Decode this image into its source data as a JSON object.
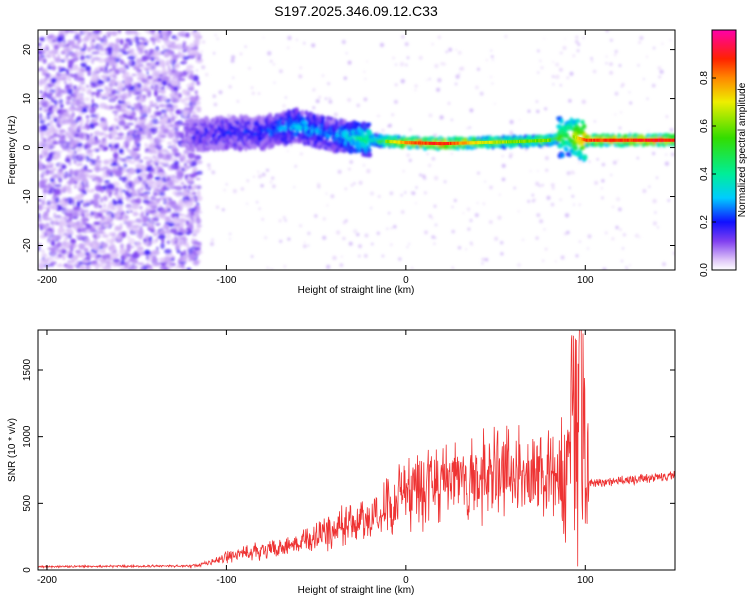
{
  "chart_data": [
    {
      "type": "heatmap",
      "title": "S197.2025.346.09.12.C33",
      "xlabel": "Height of straight line (km)",
      "ylabel": "Frequency (Hz)",
      "xlim": [
        -205,
        150
      ],
      "ylim": [
        -25,
        24
      ],
      "xticks": [
        {
          "value": -200,
          "label": "-200"
        },
        {
          "value": -100,
          "label": "-100"
        },
        {
          "value": 0,
          "label": "0"
        },
        {
          "value": 100,
          "label": "100"
        }
      ],
      "yticks": [
        {
          "value": -20,
          "label": "-20"
        },
        {
          "value": -10,
          "label": "-10"
        },
        {
          "value": 0,
          "label": "0"
        },
        {
          "value": 10,
          "label": "10"
        },
        {
          "value": 20,
          "label": "20"
        }
      ],
      "colorbar": {
        "label": "Normalized spectral amplitude",
        "range": [
          0,
          1
        ],
        "ticks": [
          {
            "value": 0.0,
            "label": "0.0"
          },
          {
            "value": 0.2,
            "label": "0.2"
          },
          {
            "value": 0.4,
            "label": "0.4"
          },
          {
            "value": 0.6,
            "label": "0.6"
          },
          {
            "value": 0.8,
            "label": "0.8"
          }
        ]
      },
      "ridge": {
        "description_points_x": [
          -120,
          -100,
          -80,
          -60,
          -40,
          -20,
          0,
          20,
          40,
          60,
          80,
          90,
          100,
          150
        ],
        "description_points_freq": [
          2.5,
          3.0,
          3.0,
          4.5,
          2.5,
          1.5,
          1.0,
          0.8,
          1.0,
          1.2,
          1.5,
          2.5,
          1.5,
          1.5
        ],
        "description_points_amplitude": [
          0.15,
          0.18,
          0.2,
          0.3,
          0.25,
          0.45,
          0.8,
          0.9,
          0.7,
          0.6,
          0.6,
          0.5,
          0.85,
          0.9
        ]
      }
    },
    {
      "type": "line",
      "xlabel": "Height of straight line (km)",
      "ylabel": "SNR (10 * v/v)",
      "xlim": [
        -205,
        150
      ],
      "ylim": [
        0,
        1800
      ],
      "color": "#ee3333",
      "xticks": [
        {
          "value": -200,
          "label": "-200"
        },
        {
          "value": -100,
          "label": "-100"
        },
        {
          "value": 0,
          "label": "0"
        },
        {
          "value": 100,
          "label": "100"
        }
      ],
      "yticks": [
        {
          "value": 0,
          "label": "0"
        },
        {
          "value": 500,
          "label": "500"
        },
        {
          "value": 1000,
          "label": "1000"
        },
        {
          "value": 1500,
          "label": "1500"
        }
      ],
      "envelope": {
        "x": [
          -205,
          -120,
          -110,
          -100,
          -80,
          -60,
          -40,
          -20,
          0,
          20,
          40,
          60,
          80,
          90,
          95,
          98,
          100,
          110,
          130,
          150
        ],
        "y": [
          25,
          30,
          50,
          100,
          150,
          200,
          300,
          380,
          560,
          650,
          720,
          760,
          700,
          680,
          900,
          1800,
          650,
          660,
          680,
          710
        ]
      }
    }
  ]
}
